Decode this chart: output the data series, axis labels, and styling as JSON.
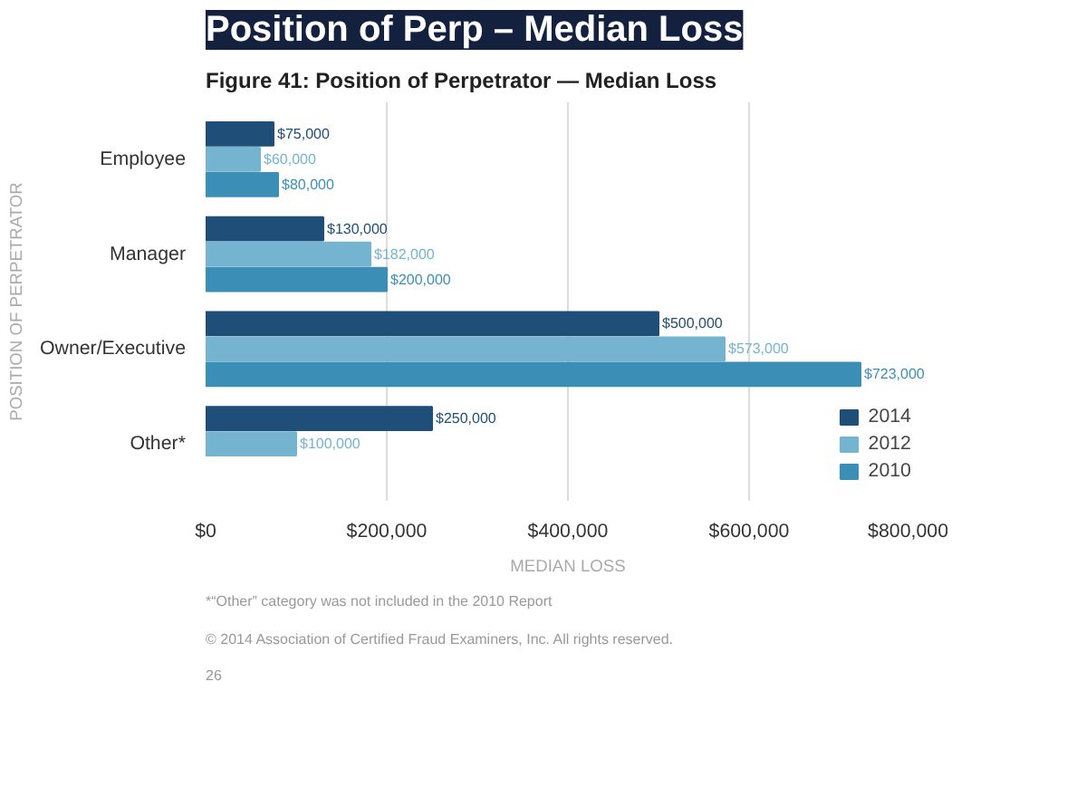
{
  "chart_data": {
    "type": "bar",
    "orientation": "horizontal",
    "title": "Position of Perp – Median Loss",
    "subtitle": "Figure 41: Position of Perpetrator — Median Loss",
    "xlabel": "MEDIAN LOSS",
    "ylabel": "POSITION OF PERPETRATOR",
    "categories": [
      "Employee",
      "Manager",
      "Owner/Executive",
      "Other*"
    ],
    "series": [
      {
        "name": "2014",
        "color": "#1f4e79",
        "values": [
          75000,
          130000,
          500000,
          250000
        ],
        "value_labels": [
          "$75,000",
          "$130,000",
          "$500,000",
          "$250,000"
        ]
      },
      {
        "name": "2012",
        "color": "#74b4d0",
        "values": [
          60000,
          182000,
          573000,
          100000
        ],
        "value_labels": [
          "$60,000",
          "$182,000",
          "$573,000",
          "$100,000"
        ]
      },
      {
        "name": "2010",
        "color": "#3b8fb6",
        "values": [
          80000,
          200000,
          723000,
          null
        ],
        "value_labels": [
          "$80,000",
          "$200,000",
          "$723,000",
          null
        ]
      }
    ],
    "xlim": [
      0,
      800000
    ],
    "xticks": [
      {
        "value": 0,
        "label": "$0"
      },
      {
        "value": 200000,
        "label": "$200,000"
      },
      {
        "value": 400000,
        "label": "$400,000"
      },
      {
        "value": 600000,
        "label": "$600,000"
      },
      {
        "value": 800000,
        "label": "$800,000"
      }
    ],
    "grid": "x",
    "legend": "bottom right",
    "annotations": [
      "*“Other” category was not included in the 2010 Report",
      "© 2014 Association of Certified Fraud Examiners, Inc. All rights reserved.",
      "26"
    ]
  }
}
